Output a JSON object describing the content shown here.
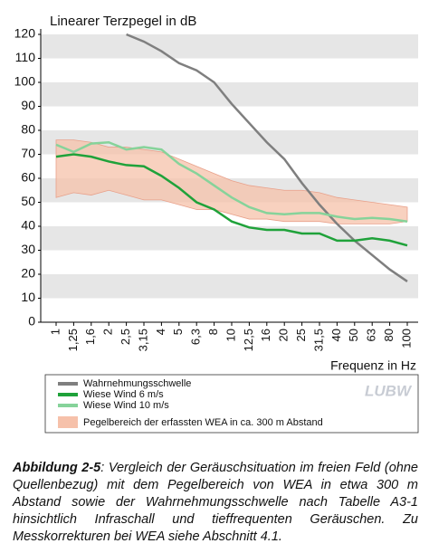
{
  "chart_data": {
    "type": "line",
    "y_label": "Linearer Terzpegel in dB",
    "x_label": "Frequenz in Hz",
    "categories": [
      "1",
      "1,25",
      "1,6",
      "2",
      "2,5",
      "3,15",
      "4",
      "5",
      "6,3",
      "8",
      "10",
      "12,5",
      "16",
      "20",
      "25",
      "31,5",
      "40",
      "50",
      "63",
      "80",
      "100"
    ],
    "series": [
      {
        "name": "Wahrnehmungsschwelle",
        "color": "#7f7f7f",
        "values": [
          null,
          null,
          null,
          null,
          120,
          117,
          113,
          108,
          105,
          100,
          91,
          83,
          75,
          68,
          58,
          49,
          41,
          34,
          28,
          22,
          17
        ]
      },
      {
        "name": "Wiese Wind 6 m/s",
        "color": "#1fa23a",
        "values": [
          69,
          70,
          69,
          67,
          65.5,
          65,
          61,
          56,
          50,
          47,
          42,
          39.5,
          38.5,
          38.5,
          37,
          37,
          34,
          34,
          35,
          34,
          32
        ]
      },
      {
        "name": "Wiese Wind 10 m/s",
        "color": "#86d39a",
        "values": [
          74,
          71,
          74.5,
          75,
          72,
          73,
          72,
          66,
          62,
          57,
          52,
          48,
          45.5,
          45,
          45.5,
          45.5,
          44,
          43,
          43.5,
          43,
          42
        ]
      }
    ],
    "range": {
      "name": "Pegelbereich der erfassten WEA in ca. 300 m Abstand",
      "color": "#f6c1aa",
      "lower": [
        52,
        54,
        53,
        55,
        53,
        51,
        51,
        49,
        47,
        47,
        45,
        43,
        43,
        42,
        42,
        42,
        41,
        41,
        41,
        41,
        42
      ],
      "upper": [
        76,
        76,
        75,
        73,
        73,
        72,
        71,
        68,
        65,
        62,
        59,
        57,
        56,
        55,
        55,
        54,
        52,
        51,
        50,
        49,
        48
      ]
    },
    "ylim": [
      0,
      120
    ],
    "yticks": [
      0,
      10,
      20,
      30,
      40,
      50,
      60,
      70,
      80,
      90,
      100,
      110,
      120
    ],
    "grid": true,
    "logo": "LUBW"
  },
  "caption": {
    "label": "Abbildung 2-5",
    "text": ": Vergleich der Geräuschsituation im freien Feld (ohne Quellenbezug) mit dem Pegelbereich von WEA in etwa 300 m Abstand sowie der Wahrnehmungsschwelle nach Tabelle A3-1 hinsichtlich Infraschall und tieffrequenten Geräuschen. Zu Messkorrekturen bei WEA siehe Abschnitt 4.1."
  }
}
